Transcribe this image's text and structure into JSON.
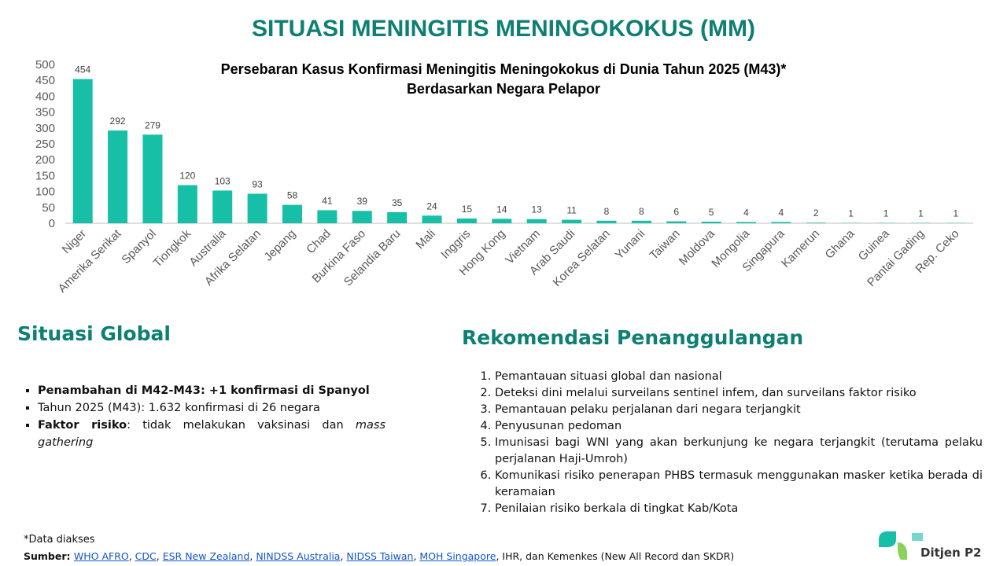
{
  "title": "SITUASI MENINGITIS MENINGOKOKUS (MM)",
  "chart_data": {
    "type": "bar",
    "title": "Persebaran Kasus Konfirmasi Meningitis Meningokokus di Dunia Tahun 2025 (M43)*",
    "subtitle": "Berdasarkan Negara Pelapor",
    "categories": [
      "Niger",
      "Amerika Serikat",
      "Spanyol",
      "Tiongkok",
      "Australia",
      "Afrika Selatan",
      "Jepang",
      "Chad",
      "Burkina Faso",
      "Selandia Baru",
      "Mali",
      "Inggris",
      "Hong Kong",
      "Vietnam",
      "Arab Saudi",
      "Korea Selatan",
      "Yunani",
      "Taiwan",
      "Moldova",
      "Mongolia",
      "Singapura",
      "Kamerun",
      "Ghana",
      "Guinea",
      "Pantai Gading",
      "Rep. Ceko"
    ],
    "values": [
      454,
      292,
      279,
      120,
      103,
      93,
      58,
      41,
      39,
      35,
      24,
      15,
      14,
      13,
      11,
      8,
      8,
      6,
      5,
      4,
      4,
      2,
      1,
      1,
      1,
      1
    ],
    "color": "#17bfa6",
    "ylim": [
      0,
      500
    ],
    "yticks": [
      0,
      50,
      100,
      150,
      200,
      250,
      300,
      350,
      400,
      450,
      500
    ],
    "grid": false
  },
  "global": {
    "heading": "Situasi Global",
    "items": [
      [
        {
          "text": "Penambahan di M42-M43: +1 konfirmasi di Spanyol",
          "style": "bold"
        }
      ],
      [
        {
          "text": "Tahun 2025 (M43): 1.632 konfirmasi di 26 negara"
        }
      ],
      [
        {
          "text": "Faktor risiko",
          "style": "bold"
        },
        {
          "text": ": tidak melakukan vaksinasi  dan "
        },
        {
          "text": "mass gathering",
          "style": "italic"
        }
      ]
    ]
  },
  "recommendations": {
    "heading": "Rekomendasi Penanggulangan",
    "items": [
      "Pemantauan situasi global dan nasional",
      "Deteksi dini melalui surveilans sentinel infem, dan surveilans faktor risiko",
      "Pemantauan pelaku perjalanan dari negara terjangkit",
      "Penyusunan pedoman",
      "Imunisasi bagi WNI yang akan berkunjung ke negara terjangkit (terutama pelaku perjalanan Haji-Umroh)",
      "Komunikasi risiko penerapan PHBS termasuk menggunakan masker ketika berada di keramaian",
      "Penilaian risiko berkala di tingkat Kab/Kota"
    ]
  },
  "footnote": "*Data diakses",
  "sources": [
    {
      "text": "Sumber: ",
      "style": "bold"
    },
    {
      "text": "WHO AFRO",
      "style": "link"
    },
    {
      "text": ", "
    },
    {
      "text": "CDC",
      "style": "link"
    },
    {
      "text": ", "
    },
    {
      "text": "ESR New Zealand",
      "style": "link"
    },
    {
      "text": ", "
    },
    {
      "text": "NINDSS Australia",
      "style": "link"
    },
    {
      "text": ", "
    },
    {
      "text": "NIDSS Taiwan",
      "style": "link"
    },
    {
      "text": ", "
    },
    {
      "text": "MOH Singapore",
      "style": "link"
    },
    {
      "text": ", IHR, dan Kemenkes (New All Record dan SKDR)"
    }
  ],
  "logo": "Ditjen P2"
}
